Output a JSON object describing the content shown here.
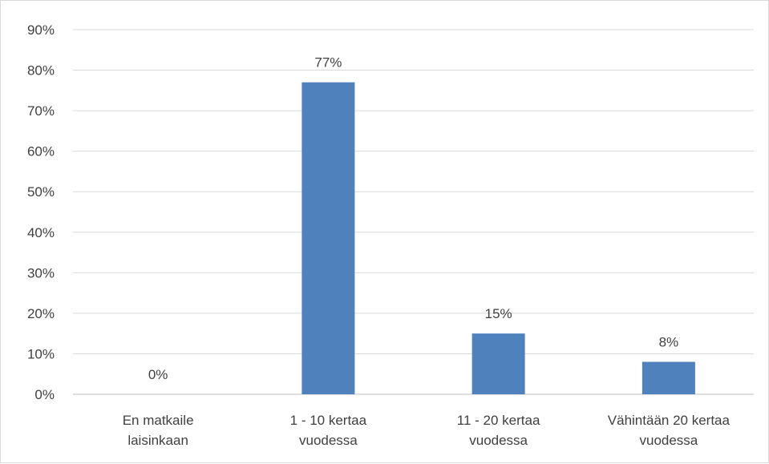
{
  "chart_data": {
    "type": "bar",
    "categories": [
      [
        "En matkaile",
        "laisinkaan"
      ],
      [
        "1 - 10 kertaa",
        "vuodessa"
      ],
      [
        "11 - 20 kertaa",
        "vuodessa"
      ],
      [
        "Vähintään 20 kertaa",
        "vuodessa"
      ]
    ],
    "values": [
      0,
      77,
      15,
      8
    ],
    "data_labels": [
      "0%",
      "77%",
      "15%",
      "8%"
    ],
    "yticks": [
      "0%",
      "10%",
      "20%",
      "30%",
      "40%",
      "50%",
      "60%",
      "70%",
      "80%",
      "90%"
    ],
    "ylim": [
      0,
      90
    ],
    "grid": true,
    "legend": "none",
    "title": "",
    "xlabel": "",
    "ylabel": "",
    "colors": {
      "bar": "#4f81bd",
      "grid": "#d9d9d9",
      "axis": "#bfbfbf",
      "text": "#404040"
    }
  }
}
